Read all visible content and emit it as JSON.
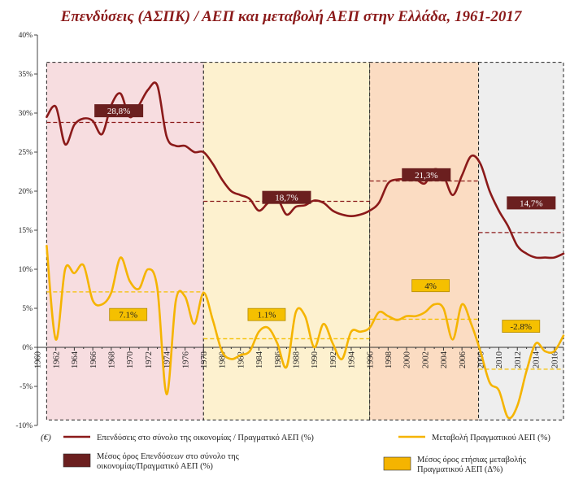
{
  "chart_data": {
    "type": "line",
    "title": "Επενδύσεις (ΑΣΠΚ) / ΑΕΠ και μεταβολή ΑΕΠ στην Ελλάδα, 1961-2017",
    "ylim": [
      -10,
      40
    ],
    "yticks": [
      "40%",
      "35%",
      "30%",
      "25%",
      "20%",
      "15%",
      "10%",
      "5%",
      "0%",
      "-5%",
      "-10%"
    ],
    "xlim": [
      1960,
      2017
    ],
    "xticks": [
      "1960",
      "1962",
      "1964",
      "1966",
      "1968",
      "1970",
      "1972",
      "1974",
      "1976",
      "1978",
      "1980",
      "1982",
      "1984",
      "1986",
      "1988",
      "1990",
      "1992",
      "1994",
      "1996",
      "1998",
      "2000",
      "2002",
      "2004",
      "2006",
      "2008",
      "2010",
      "2012",
      "2014",
      "2016"
    ],
    "grid": false,
    "periods": [
      {
        "start": 1961,
        "end": 1978,
        "color": "#f7dde0",
        "inv_mean": 28.8,
        "inv_label": "28,8%",
        "gdp_mean": 7.1,
        "gdp_label": "7.1%"
      },
      {
        "start": 1978,
        "end": 1996,
        "color": "#fdf1cf",
        "inv_mean": 18.7,
        "inv_label": "18,7%",
        "gdp_mean": 1.1,
        "gdp_label": "1.1%"
      },
      {
        "start": 1996,
        "end": 2007.8,
        "color": "#fbdcc2",
        "inv_mean": 21.3,
        "inv_label": "21,3%",
        "gdp_mean": 3.6,
        "gdp_label": "4%"
      },
      {
        "start": 2007.8,
        "end": 2017,
        "color": "#eeeeee",
        "inv_mean": 14.7,
        "inv_label": "14,7%",
        "gdp_mean": -2.8,
        "gdp_label": "-2.8%"
      }
    ],
    "series": [
      {
        "name": "Επενδύσεις στο σύνολο της οικονομίας / Πραγματικό ΑΕΠ (%)",
        "color": "#8b1a1a",
        "x": [
          1961,
          1962,
          1963,
          1964,
          1965,
          1966,
          1967,
          1968,
          1969,
          1970,
          1971,
          1972,
          1973,
          1974,
          1975,
          1976,
          1977,
          1978,
          1979,
          1980,
          1981,
          1982,
          1983,
          1984,
          1985,
          1986,
          1987,
          1988,
          1989,
          1990,
          1991,
          1992,
          1993,
          1994,
          1995,
          1996,
          1997,
          1998,
          1999,
          2000,
          2001,
          2002,
          2003,
          2004,
          2005,
          2006,
          2007,
          2008,
          2009,
          2010,
          2011,
          2012,
          2013,
          2014,
          2015,
          2016,
          2017
        ],
        "y": [
          29.5,
          30.8,
          26.0,
          28.5,
          29.3,
          29.0,
          27.3,
          31.0,
          32.5,
          29.5,
          31.0,
          33.0,
          33.5,
          27.0,
          25.8,
          25.8,
          25.0,
          25.0,
          23.5,
          21.5,
          20.0,
          19.5,
          19.0,
          17.5,
          18.5,
          19.0,
          17.0,
          18.0,
          18.2,
          18.8,
          18.5,
          17.5,
          17.0,
          16.8,
          17.0,
          17.5,
          18.5,
          21.0,
          21.5,
          21.5,
          21.5,
          21.0,
          22.8,
          22.0,
          19.5,
          22.0,
          24.5,
          23.5,
          20.0,
          17.5,
          15.5,
          13.0,
          12.0,
          11.5,
          11.5,
          11.5,
          12.0
        ]
      },
      {
        "name": "Μεταβολή Πραγματικού ΑΕΠ (%)",
        "color": "#f5b400",
        "x": [
          1961,
          1962,
          1963,
          1964,
          1965,
          1966,
          1967,
          1968,
          1969,
          1970,
          1971,
          1972,
          1973,
          1974,
          1975,
          1976,
          1977,
          1978,
          1979,
          1980,
          1981,
          1982,
          1983,
          1984,
          1985,
          1986,
          1987,
          1988,
          1989,
          1990,
          1991,
          1992,
          1993,
          1994,
          1995,
          1996,
          1997,
          1998,
          1999,
          2000,
          2001,
          2002,
          2003,
          2004,
          2005,
          2006,
          2007,
          2008,
          2009,
          2010,
          2011,
          2012,
          2013,
          2014,
          2015,
          2016,
          2017
        ],
        "y": [
          13.0,
          1.0,
          10.0,
          9.5,
          10.5,
          6.0,
          5.5,
          7.0,
          11.5,
          8.5,
          7.5,
          10.0,
          7.5,
          -6.0,
          6.0,
          6.5,
          3.0,
          7.0,
          3.5,
          -0.5,
          -1.5,
          -1.0,
          -0.5,
          2.0,
          2.5,
          0.5,
          -2.5,
          4.5,
          4.0,
          0.0,
          3.0,
          0.5,
          -1.5,
          2.0,
          2.0,
          2.5,
          4.5,
          4.0,
          3.5,
          4.0,
          4.0,
          4.5,
          5.5,
          5.0,
          1.0,
          5.5,
          3.0,
          -0.5,
          -4.5,
          -5.5,
          -9.0,
          -7.5,
          -3.0,
          0.5,
          -0.5,
          -0.5,
          1.5
        ]
      }
    ],
    "legend": {
      "position": "bottom",
      "unit_label": "(€)",
      "items": [
        {
          "label": "Επενδύσεις στο σύνολο της οικονομίας / Πραγματικό ΑΕΠ (%)",
          "kind": "line",
          "color": "#8b1a1a"
        },
        {
          "label": "Μεταβολή Πραγματικού ΑΕΠ (%)",
          "kind": "line",
          "color": "#f5b400"
        },
        {
          "label": "Μέσος όρος Επενδύσεων στο σύνολο της οικονομίας/Πραγματικό ΑΕΠ (%)",
          "kind": "box",
          "color": "#6b1f1f"
        },
        {
          "label": "Μέσος όρος ετήσιας μεταβολής Πραγματικού ΑΕΠ (Δ%)",
          "kind": "box",
          "color": "#f5b400"
        }
      ]
    }
  }
}
